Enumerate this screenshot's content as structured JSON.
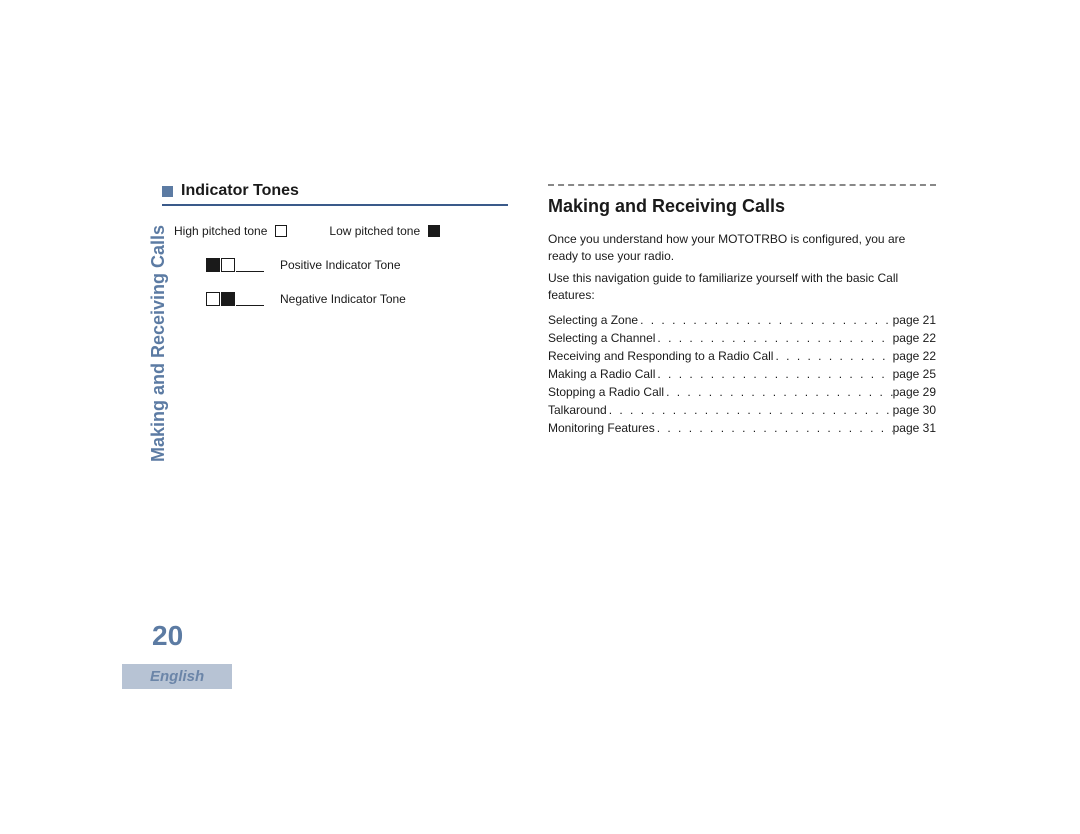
{
  "colors": {
    "accent": "#5c7ba3",
    "badge_bg": "#b7c3d4",
    "badge_text": "#6b85a8",
    "text": "#1a1a1a",
    "section_underline": "#3a5a8a",
    "dashed": "#888888"
  },
  "sidebar": {
    "vertical_label": "Making and Receiving Calls",
    "page_number": "20",
    "language": "English"
  },
  "left": {
    "section_title": "Indicator Tones",
    "legend": {
      "high_label": "High pitched tone",
      "low_label": "Low pitched tone"
    },
    "tones": [
      {
        "pattern": [
          true,
          false
        ],
        "label": "Positive Indicator Tone"
      },
      {
        "pattern": [
          false,
          true
        ],
        "label": "Negative Indicator Tone"
      }
    ]
  },
  "right": {
    "title": "Making and Receiving Calls",
    "para1": "Once you understand how your MOTOTRBO  is configured, you are ready to use your radio.",
    "para2": "Use this navigation guide to familiarize yourself with the basic Call features:",
    "toc": [
      {
        "label": "Selecting a Zone",
        "page": "page 21"
      },
      {
        "label": "Selecting a Channel",
        "page": "page 22"
      },
      {
        "label": "Receiving and Responding to a Radio Call",
        "page": "page 22"
      },
      {
        "label": "Making a Radio Call",
        "page": "page 25"
      },
      {
        "label": "Stopping a Radio Call",
        "page": "page 29"
      },
      {
        "label": "Talkaround",
        "page": "page 30"
      },
      {
        "label": "Monitoring Features",
        "page": "page 31"
      }
    ]
  }
}
